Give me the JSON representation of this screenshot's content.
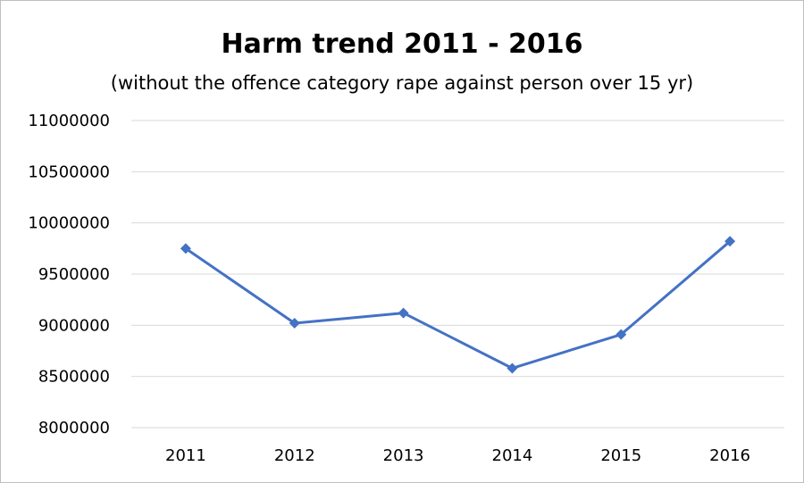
{
  "chart_data": {
    "type": "line",
    "title": "Harm trend 2011 - 2016",
    "subtitle": "(without the offence category rape against person over 15 yr)",
    "xlabel": "",
    "ylabel": "",
    "categories": [
      "2011",
      "2012",
      "2013",
      "2014",
      "2015",
      "2016"
    ],
    "series": [
      {
        "values": [
          9750000,
          9020000,
          9120000,
          8580000,
          8910000,
          9820000
        ],
        "color": "#4472c4",
        "marker": "diamond"
      }
    ],
    "ylim": [
      8000000,
      11000000
    ],
    "yticks": [
      8000000,
      8500000,
      9000000,
      9500000,
      10000000,
      10500000,
      11000000
    ],
    "ytick_labels": [
      "8000000",
      "8500000",
      "9000000",
      "9500000",
      "10000000",
      "10500000",
      "11000000"
    ],
    "grid": true,
    "legend": "none"
  }
}
